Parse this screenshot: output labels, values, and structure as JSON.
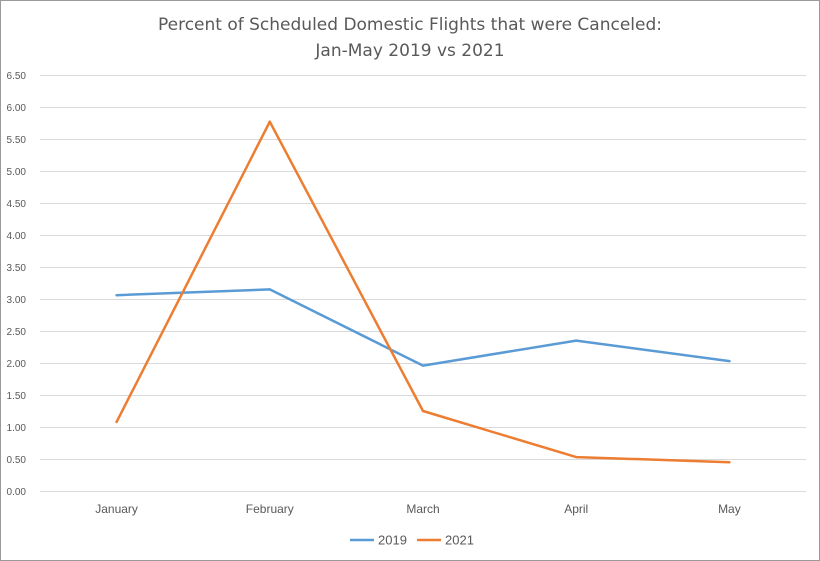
{
  "chart_data": {
    "type": "line",
    "title_line1": "Percent of Scheduled Domestic Flights that were Canceled:",
    "title_line2": "Jan-May 2019 vs 2021",
    "xlabel": "",
    "ylabel": "",
    "categories": [
      "January",
      "February",
      "March",
      "April",
      "May"
    ],
    "ylim": [
      0,
      6.5
    ],
    "yticks": [
      "0.00",
      "0.50",
      "1.00",
      "1.50",
      "2.00",
      "2.50",
      "3.00",
      "3.50",
      "4.00",
      "4.50",
      "5.00",
      "5.50",
      "6.00",
      "6.50"
    ],
    "grid": true,
    "legend_position": "bottom",
    "series": [
      {
        "name": "2019",
        "color": "#5b9bd5",
        "values": [
          3.06,
          3.15,
          1.96,
          2.35,
          2.03
        ]
      },
      {
        "name": "2021",
        "color": "#ed7d31",
        "values": [
          1.08,
          5.77,
          1.25,
          0.53,
          0.45
        ]
      }
    ]
  }
}
